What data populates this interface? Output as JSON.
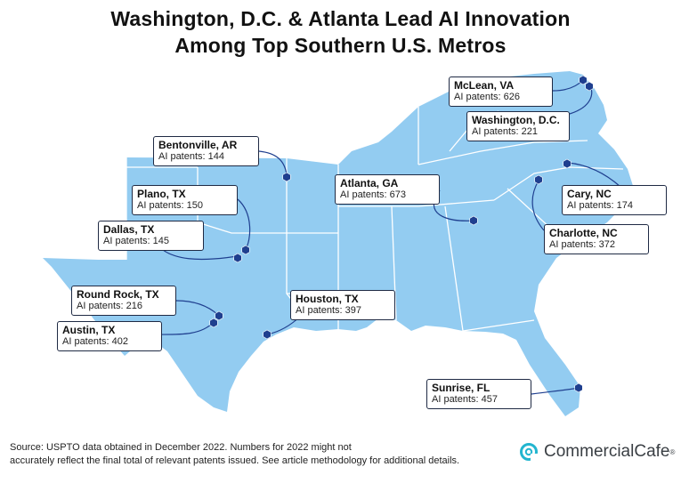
{
  "header": {
    "title_line1": "Washington, D.C. & Atlanta Lead AI Innovation",
    "title_line2": "Among Top Southern U.S. Metros"
  },
  "colors": {
    "land": "#93ccf1",
    "borders": "#ffffff",
    "marker": "#1f3f8f",
    "box_border": "#1f2a44",
    "logo_accent": "#22b5cf"
  },
  "metros": [
    {
      "id": "mclean",
      "name": "McLean, VA",
      "patents_label": "AI patents: 626",
      "patents": 626
    },
    {
      "id": "washington",
      "name": "Washington, D.C.",
      "patents_label": "AI patents: 221",
      "patents": 221
    },
    {
      "id": "bentonville",
      "name": "Bentonville, AR",
      "patents_label": "AI patents: 144",
      "patents": 144
    },
    {
      "id": "atlanta",
      "name": "Atlanta, GA",
      "patents_label": "AI patents: 673",
      "patents": 673
    },
    {
      "id": "cary",
      "name": "Cary, NC",
      "patents_label": "AI patents: 174",
      "patents": 174
    },
    {
      "id": "plano",
      "name": "Plano, TX",
      "patents_label": "AI patents: 150",
      "patents": 150
    },
    {
      "id": "dallas",
      "name": "Dallas, TX",
      "patents_label": "AI patents: 145",
      "patents": 145
    },
    {
      "id": "charlotte",
      "name": "Charlotte, NC",
      "patents_label": "AI patents: 372",
      "patents": 372
    },
    {
      "id": "roundrock",
      "name": "Round Rock, TX",
      "patents_label": "AI patents: 216",
      "patents": 216
    },
    {
      "id": "houston",
      "name": "Houston, TX",
      "patents_label": "AI patents: 397",
      "patents": 397
    },
    {
      "id": "austin",
      "name": "Austin, TX",
      "patents_label": "AI patents: 402",
      "patents": 402
    },
    {
      "id": "sunrise",
      "name": "Sunrise, FL",
      "patents_label": "AI patents: 457",
      "patents": 457
    }
  ],
  "footer": {
    "source_line1": "Source: USPTO data obtained in December 2022. Numbers for 2022 might not",
    "source_line2": "accurately reflect the final total of relevant patents issued. See article methodology for additional details.",
    "brand_name": "CommercialCafe",
    "brand_mark": "®"
  }
}
